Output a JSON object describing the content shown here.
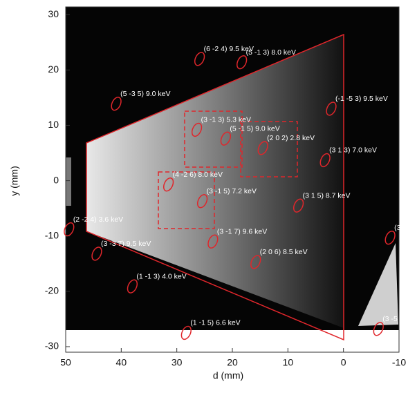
{
  "chart_data": {
    "type": "scatter",
    "xlabel": "d (mm)",
    "ylabel": "y (mm)",
    "xlim": [
      50,
      -10
    ],
    "ylim": [
      -31,
      31.4
    ],
    "xticks": [
      50,
      40,
      30,
      20,
      10,
      0,
      -10
    ],
    "yticks": [
      30,
      20,
      10,
      0,
      -10,
      -20,
      -30
    ],
    "color": "#e0262b",
    "points": [
      {
        "label": "(6 -2 4) 9.5 keV",
        "d": 25.9,
        "y": 22.0
      },
      {
        "label": "(5 -1 3) 8.0 keV",
        "d": 18.3,
        "y": 21.4
      },
      {
        "label": "(5 -3 5) 9.0 keV",
        "d": 40.9,
        "y": 13.9
      },
      {
        "label": "(-1 -5 3) 9.5 keV",
        "d": 2.2,
        "y": 13.0
      },
      {
        "label": "(3 -1 3) 5.3 keV",
        "d": 26.4,
        "y": 9.2
      },
      {
        "label": "(5 -1 5) 9.0 keV",
        "d": 21.2,
        "y": 7.6
      },
      {
        "label": "(2 0 2) 2.8 keV",
        "d": 14.5,
        "y": 5.9
      },
      {
        "label": "(3 1 3) 7.0 keV",
        "d": 3.3,
        "y": 3.7
      },
      {
        "label": "(4 -2 6) 8.0 keV",
        "d": 31.5,
        "y": -0.7
      },
      {
        "label": "(3 -1 5) 7.2 keV",
        "d": 25.4,
        "y": -3.7
      },
      {
        "label": "(3 1 5) 8.7 keV",
        "d": 8.1,
        "y": -4.5
      },
      {
        "label": "(2 -2 4) 3.6 keV",
        "d": 49.4,
        "y": -8.8
      },
      {
        "label": "(3 -1 7) 9.6 keV",
        "d": 23.5,
        "y": -11.0
      },
      {
        "label": "(3 -3 7) 9.5 keV",
        "d": 44.4,
        "y": -13.2
      },
      {
        "label": "(2 0 6) 8.5 keV",
        "d": 15.8,
        "y": -14.7
      },
      {
        "label": "(1 -1 3) 4.0 keV",
        "d": 38.0,
        "y": -19.1
      },
      {
        "label": "(1 -1 5) 6.6 keV",
        "d": 28.3,
        "y": -27.5
      },
      {
        "label": "(3",
        "d": -8.4,
        "y": -10.3
      },
      {
        "label": "(3 -5",
        "d": -6.3,
        "y": -26.8
      }
    ]
  }
}
